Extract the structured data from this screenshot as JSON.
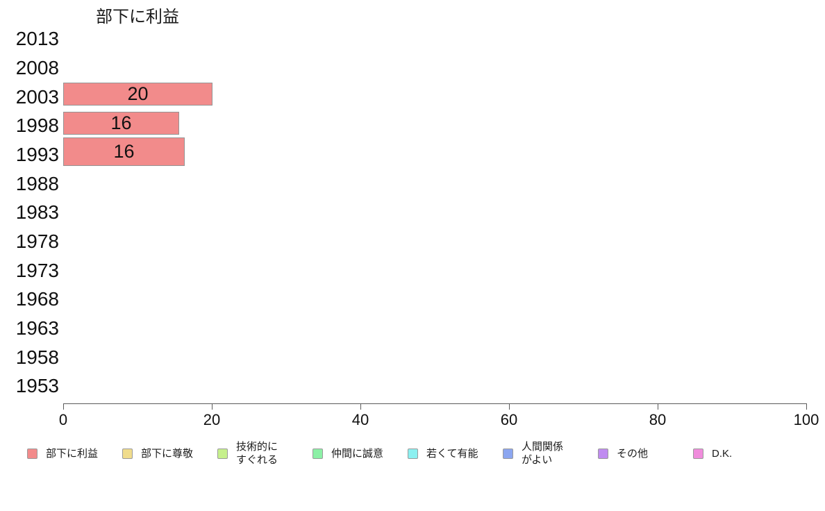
{
  "chart_data": {
    "type": "bar",
    "orientation": "horizontal",
    "title": "部下に利益",
    "categories": [
      "2013",
      "2008",
      "2003",
      "1998",
      "1993",
      "1988",
      "1983",
      "1978",
      "1973",
      "1968",
      "1963",
      "1958",
      "1953"
    ],
    "xlim": [
      0,
      100
    ],
    "xticks": [
      0,
      20,
      40,
      60,
      80,
      100
    ],
    "grid": false,
    "legend_position": "bottom",
    "series": [
      {
        "name": "部下に利益",
        "color": "#F28B8B",
        "values": [
          null,
          null,
          20,
          16,
          16,
          null,
          null,
          null,
          null,
          null,
          null,
          null,
          null
        ]
      },
      {
        "name": "部下に尊敬",
        "color": "#F0DC8C",
        "values": [
          null,
          null,
          null,
          null,
          null,
          null,
          null,
          null,
          null,
          null,
          null,
          null,
          null
        ]
      },
      {
        "name": "技術的にすぐれる",
        "color": "#C6F08C",
        "values": [
          null,
          null,
          null,
          null,
          null,
          null,
          null,
          null,
          null,
          null,
          null,
          null,
          null
        ]
      },
      {
        "name": "仲間に誠意",
        "color": "#8CF0A6",
        "values": [
          null,
          null,
          null,
          null,
          null,
          null,
          null,
          null,
          null,
          null,
          null,
          null,
          null
        ]
      },
      {
        "name": "若くて有能",
        "color": "#8CF0F0",
        "values": [
          null,
          null,
          null,
          null,
          null,
          null,
          null,
          null,
          null,
          null,
          null,
          null,
          null
        ]
      },
      {
        "name": "人間関係がよい",
        "color": "#8CA6F0",
        "values": [
          null,
          null,
          null,
          null,
          null,
          null,
          null,
          null,
          null,
          null,
          null,
          null,
          null
        ]
      },
      {
        "name": "その他",
        "color": "#C08CF0",
        "values": [
          null,
          null,
          null,
          null,
          null,
          null,
          null,
          null,
          null,
          null,
          null,
          null,
          null
        ]
      },
      {
        "name": "D.K.",
        "color": "#F08CDC",
        "values": [
          null,
          null,
          null,
          null,
          null,
          null,
          null,
          null,
          null,
          null,
          null,
          null,
          null
        ]
      }
    ],
    "bars": [
      {
        "category": "2003",
        "label": "20",
        "value": 20.1
      },
      {
        "category": "1998",
        "label": "16",
        "value": 15.6
      },
      {
        "category": "1993",
        "label": "16",
        "value": 16.4
      }
    ]
  },
  "legend": {
    "items": [
      {
        "lines": [
          "部下に利益"
        ],
        "color": "#F28B8B"
      },
      {
        "lines": [
          "部下に尊敬"
        ],
        "color": "#F0DC8C"
      },
      {
        "lines": [
          "技術的に",
          "すぐれる"
        ],
        "color": "#C6F08C"
      },
      {
        "lines": [
          "仲間に誠意"
        ],
        "color": "#8CF0A6"
      },
      {
        "lines": [
          "若くて有能"
        ],
        "color": "#8CF0F0"
      },
      {
        "lines": [
          "人間関係",
          "がよい"
        ],
        "color": "#8CA6F0"
      },
      {
        "lines": [
          "その他"
        ],
        "color": "#C08CF0"
      },
      {
        "lines": [
          "D.K."
        ],
        "color": "#F08CDC"
      }
    ]
  },
  "colors": {
    "bar_fill": "#F28B8B",
    "bar_border": "#949494",
    "axis": "#5a5a5a",
    "text": "#111111"
  }
}
